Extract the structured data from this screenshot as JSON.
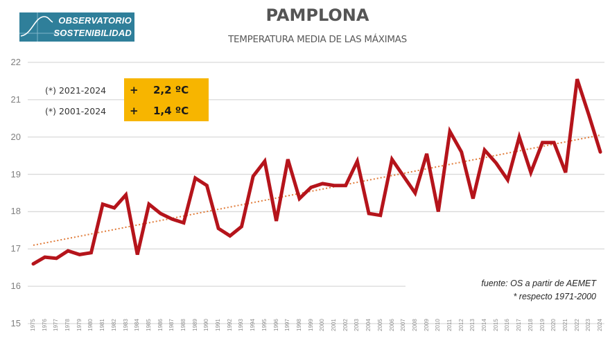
{
  "logo": {
    "line1": "OBSERVATORIO",
    "line2": "SOSTENIBILIDAD",
    "color": "#2f7f9a"
  },
  "header": {
    "title": "PAMPLONA",
    "subtitle": "TEMPERATURA MEDIA DE LAS MÁXIMAS"
  },
  "annotations": {
    "rows": [
      {
        "label": "(*) 2021-2024",
        "sign": "+",
        "value": "2,2 ºC"
      },
      {
        "label": "(*) 2001-2024",
        "sign": "+",
        "value": "1,4 ºC"
      }
    ],
    "box_color": "#f7b500"
  },
  "footnotes": {
    "source": "fuente: OS a partir de AEMET",
    "reference": "* respecto 1971-2000"
  },
  "y_ticks": [
    "22",
    "21",
    "20",
    "19",
    "18",
    "17",
    "16",
    "15"
  ],
  "chart_data": {
    "type": "line",
    "title": "PAMPLONA",
    "subtitle": "TEMPERATURA MEDIA DE LAS MÁXIMAS",
    "xlabel": "",
    "ylabel": "",
    "ylim": [
      15,
      22
    ],
    "grid": true,
    "legend": "none",
    "x": [
      1975,
      1976,
      1977,
      1978,
      1979,
      1980,
      1981,
      1982,
      1983,
      1984,
      1985,
      1986,
      1987,
      1988,
      1989,
      1990,
      1991,
      1992,
      1993,
      1994,
      1995,
      1996,
      1997,
      1998,
      1999,
      2000,
      2001,
      2002,
      2003,
      2004,
      2005,
      2006,
      2007,
      2008,
      2009,
      2010,
      2011,
      2012,
      2013,
      2014,
      2015,
      2016,
      2017,
      2018,
      2019,
      2020,
      2021,
      2022,
      2023,
      2024
    ],
    "series": [
      {
        "name": "Temperatura media de las máximas (ºC)",
        "color": "#b5141b",
        "values": [
          16.6,
          16.78,
          16.75,
          16.95,
          16.85,
          16.9,
          18.2,
          18.1,
          18.45,
          16.85,
          18.2,
          17.95,
          17.8,
          17.7,
          18.9,
          18.7,
          17.55,
          17.35,
          17.6,
          18.95,
          19.35,
          17.75,
          19.4,
          18.35,
          18.65,
          18.75,
          18.7,
          18.7,
          19.35,
          17.95,
          17.9,
          19.4,
          18.95,
          18.5,
          19.55,
          18.0,
          20.15,
          19.6,
          18.35,
          19.65,
          19.3,
          18.85,
          20.0,
          19.05,
          19.85,
          19.85,
          19.05,
          21.55,
          20.6,
          19.6
        ]
      },
      {
        "name": "Tendencia lineal",
        "color": "#e07b39",
        "style": "dotted",
        "values_endpoints": [
          17.1,
          20.05
        ]
      }
    ],
    "annotations": [
      "(*) 2021-2024 + 2,2 ºC",
      "(*) 2001-2024 + 1,4 ºC",
      "fuente: OS a partir de AEMET",
      "* respecto 1971-2000"
    ]
  }
}
